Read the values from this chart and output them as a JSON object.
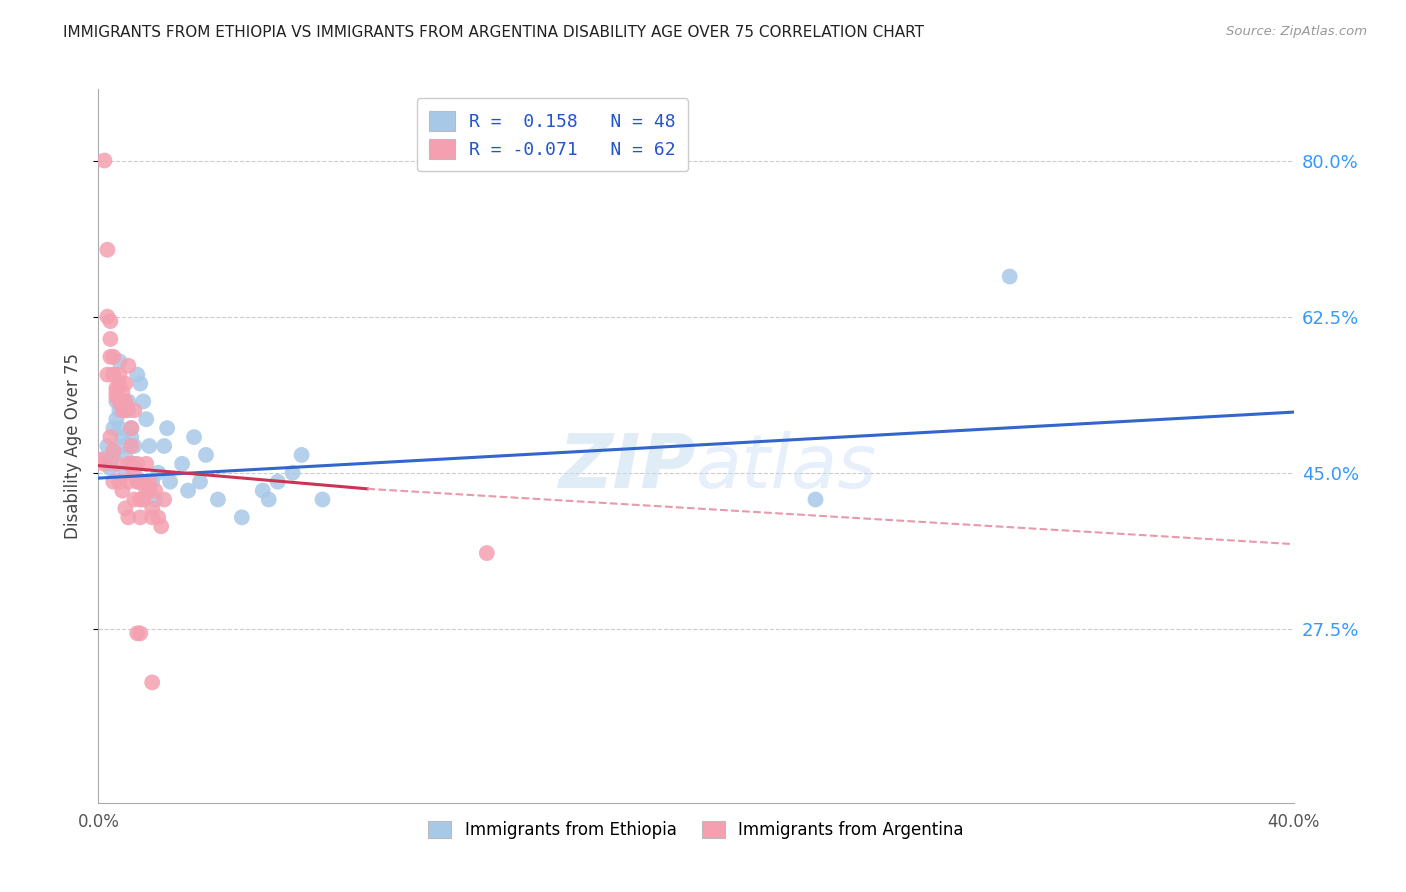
{
  "title": "IMMIGRANTS FROM ETHIOPIA VS IMMIGRANTS FROM ARGENTINA DISABILITY AGE OVER 75 CORRELATION CHART",
  "source": "Source: ZipAtlas.com",
  "ylabel": "Disability Age Over 75",
  "ytick_labels": [
    "80.0%",
    "62.5%",
    "45.0%",
    "27.5%"
  ],
  "ytick_values": [
    0.8,
    0.625,
    0.45,
    0.275
  ],
  "xlim": [
    0.0,
    0.4
  ],
  "ylim": [
    0.08,
    0.88
  ],
  "legend_label_blue": "R =  0.158   N = 48",
  "legend_label_pink": "R = -0.071   N = 62",
  "legend_label_blue_scatter": "Immigrants from Ethiopia",
  "legend_label_pink_scatter": "Immigrants from Argentina",
  "blue_color": "#a8c8e8",
  "pink_color": "#f4a0b0",
  "blue_line_color": "#3366cc",
  "pink_line_color": "#cc3355",
  "pink_dashed_color": "#e899aa",
  "watermark_zip": "ZIP",
  "watermark_atlas": "atlas",
  "blue_scatter": [
    [
      0.002,
      0.465
    ],
    [
      0.003,
      0.48
    ],
    [
      0.004,
      0.46
    ],
    [
      0.004,
      0.455
    ],
    [
      0.005,
      0.47
    ],
    [
      0.005,
      0.5
    ],
    [
      0.006,
      0.53
    ],
    [
      0.006,
      0.51
    ],
    [
      0.007,
      0.52
    ],
    [
      0.007,
      0.5
    ],
    [
      0.007,
      0.575
    ],
    [
      0.008,
      0.48
    ],
    [
      0.008,
      0.49
    ],
    [
      0.009,
      0.47
    ],
    [
      0.009,
      0.45
    ],
    [
      0.01,
      0.52
    ],
    [
      0.01,
      0.53
    ],
    [
      0.011,
      0.5
    ],
    [
      0.011,
      0.49
    ],
    [
      0.012,
      0.48
    ],
    [
      0.012,
      0.46
    ],
    [
      0.013,
      0.44
    ],
    [
      0.013,
      0.56
    ],
    [
      0.014,
      0.55
    ],
    [
      0.015,
      0.53
    ],
    [
      0.016,
      0.51
    ],
    [
      0.017,
      0.48
    ],
    [
      0.018,
      0.44
    ],
    [
      0.019,
      0.42
    ],
    [
      0.02,
      0.45
    ],
    [
      0.022,
      0.48
    ],
    [
      0.023,
      0.5
    ],
    [
      0.024,
      0.44
    ],
    [
      0.028,
      0.46
    ],
    [
      0.03,
      0.43
    ],
    [
      0.032,
      0.49
    ],
    [
      0.034,
      0.44
    ],
    [
      0.036,
      0.47
    ],
    [
      0.04,
      0.42
    ],
    [
      0.048,
      0.4
    ],
    [
      0.055,
      0.43
    ],
    [
      0.057,
      0.42
    ],
    [
      0.06,
      0.44
    ],
    [
      0.065,
      0.45
    ],
    [
      0.068,
      0.47
    ],
    [
      0.075,
      0.42
    ],
    [
      0.24,
      0.42
    ],
    [
      0.305,
      0.67
    ]
  ],
  "pink_scatter": [
    [
      0.002,
      0.8
    ],
    [
      0.003,
      0.7
    ],
    [
      0.003,
      0.625
    ],
    [
      0.004,
      0.62
    ],
    [
      0.004,
      0.6
    ],
    [
      0.005,
      0.58
    ],
    [
      0.005,
      0.56
    ],
    [
      0.005,
      0.56
    ],
    [
      0.006,
      0.545
    ],
    [
      0.006,
      0.54
    ],
    [
      0.006,
      0.535
    ],
    [
      0.007,
      0.53
    ],
    [
      0.007,
      0.56
    ],
    [
      0.007,
      0.55
    ],
    [
      0.008,
      0.54
    ],
    [
      0.008,
      0.53
    ],
    [
      0.008,
      0.52
    ],
    [
      0.009,
      0.53
    ],
    [
      0.009,
      0.55
    ],
    [
      0.009,
      0.52
    ],
    [
      0.01,
      0.57
    ],
    [
      0.01,
      0.46
    ],
    [
      0.01,
      0.44
    ],
    [
      0.011,
      0.5
    ],
    [
      0.011,
      0.46
    ],
    [
      0.011,
      0.48
    ],
    [
      0.012,
      0.52
    ],
    [
      0.012,
      0.42
    ],
    [
      0.012,
      0.45
    ],
    [
      0.013,
      0.44
    ],
    [
      0.013,
      0.46
    ],
    [
      0.014,
      0.44
    ],
    [
      0.014,
      0.42
    ],
    [
      0.014,
      0.4
    ],
    [
      0.015,
      0.44
    ],
    [
      0.015,
      0.42
    ],
    [
      0.016,
      0.43
    ],
    [
      0.016,
      0.46
    ],
    [
      0.017,
      0.44
    ],
    [
      0.017,
      0.43
    ],
    [
      0.018,
      0.4
    ],
    [
      0.018,
      0.41
    ],
    [
      0.019,
      0.43
    ],
    [
      0.02,
      0.4
    ],
    [
      0.021,
      0.39
    ],
    [
      0.022,
      0.42
    ],
    [
      0.003,
      0.56
    ],
    [
      0.004,
      0.58
    ],
    [
      0.004,
      0.49
    ],
    [
      0.005,
      0.475
    ],
    [
      0.005,
      0.44
    ],
    [
      0.006,
      0.46
    ],
    [
      0.007,
      0.44
    ],
    [
      0.008,
      0.43
    ],
    [
      0.009,
      0.41
    ],
    [
      0.01,
      0.4
    ],
    [
      0.013,
      0.27
    ],
    [
      0.014,
      0.27
    ],
    [
      0.018,
      0.215
    ],
    [
      0.13,
      0.36
    ],
    [
      0.001,
      0.465
    ],
    [
      0.002,
      0.46
    ]
  ],
  "blue_trendline": [
    [
      0.0,
      0.444
    ],
    [
      0.4,
      0.518
    ]
  ],
  "pink_trendline_solid": [
    [
      0.0,
      0.458
    ],
    [
      0.09,
      0.432
    ]
  ],
  "pink_trendline_dashed": [
    [
      0.09,
      0.432
    ],
    [
      0.4,
      0.37
    ]
  ]
}
